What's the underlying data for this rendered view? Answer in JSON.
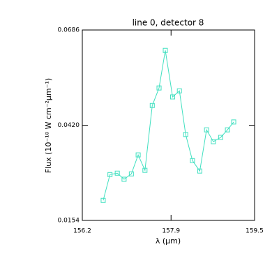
{
  "chart_data": {
    "type": "line",
    "title": "line 0, detector 8",
    "xlabel": "λ (μm)",
    "ylabel": "Flux (10⁻¹⁸ W cm⁻²μm⁻¹)",
    "x": [
      156.6,
      156.73,
      156.87,
      157.0,
      157.14,
      157.27,
      157.4,
      157.54,
      157.67,
      157.79,
      157.93,
      158.06,
      158.18,
      158.31,
      158.45,
      158.58,
      158.71,
      158.85,
      158.98,
      159.1
    ],
    "series": [
      {
        "color": "#40e0c0",
        "values": [
          0.021,
          0.0282,
          0.0286,
          0.0269,
          0.0284,
          0.0337,
          0.0294,
          0.0475,
          0.0524,
          0.0629,
          0.0499,
          0.0516,
          0.0394,
          0.0321,
          0.0292,
          0.0407,
          0.0374,
          0.0386,
          0.0407,
          0.0429
        ]
      }
    ],
    "xlim": [
      156.2,
      159.5
    ],
    "xticks": [
      156.2,
      157.9,
      159.5
    ],
    "ylim": [
      0.0154,
      0.0686
    ],
    "yticks": [
      0.0154,
      {
        "value": 0.042,
        "label": "0.0420"
      },
      0.0686
    ]
  }
}
